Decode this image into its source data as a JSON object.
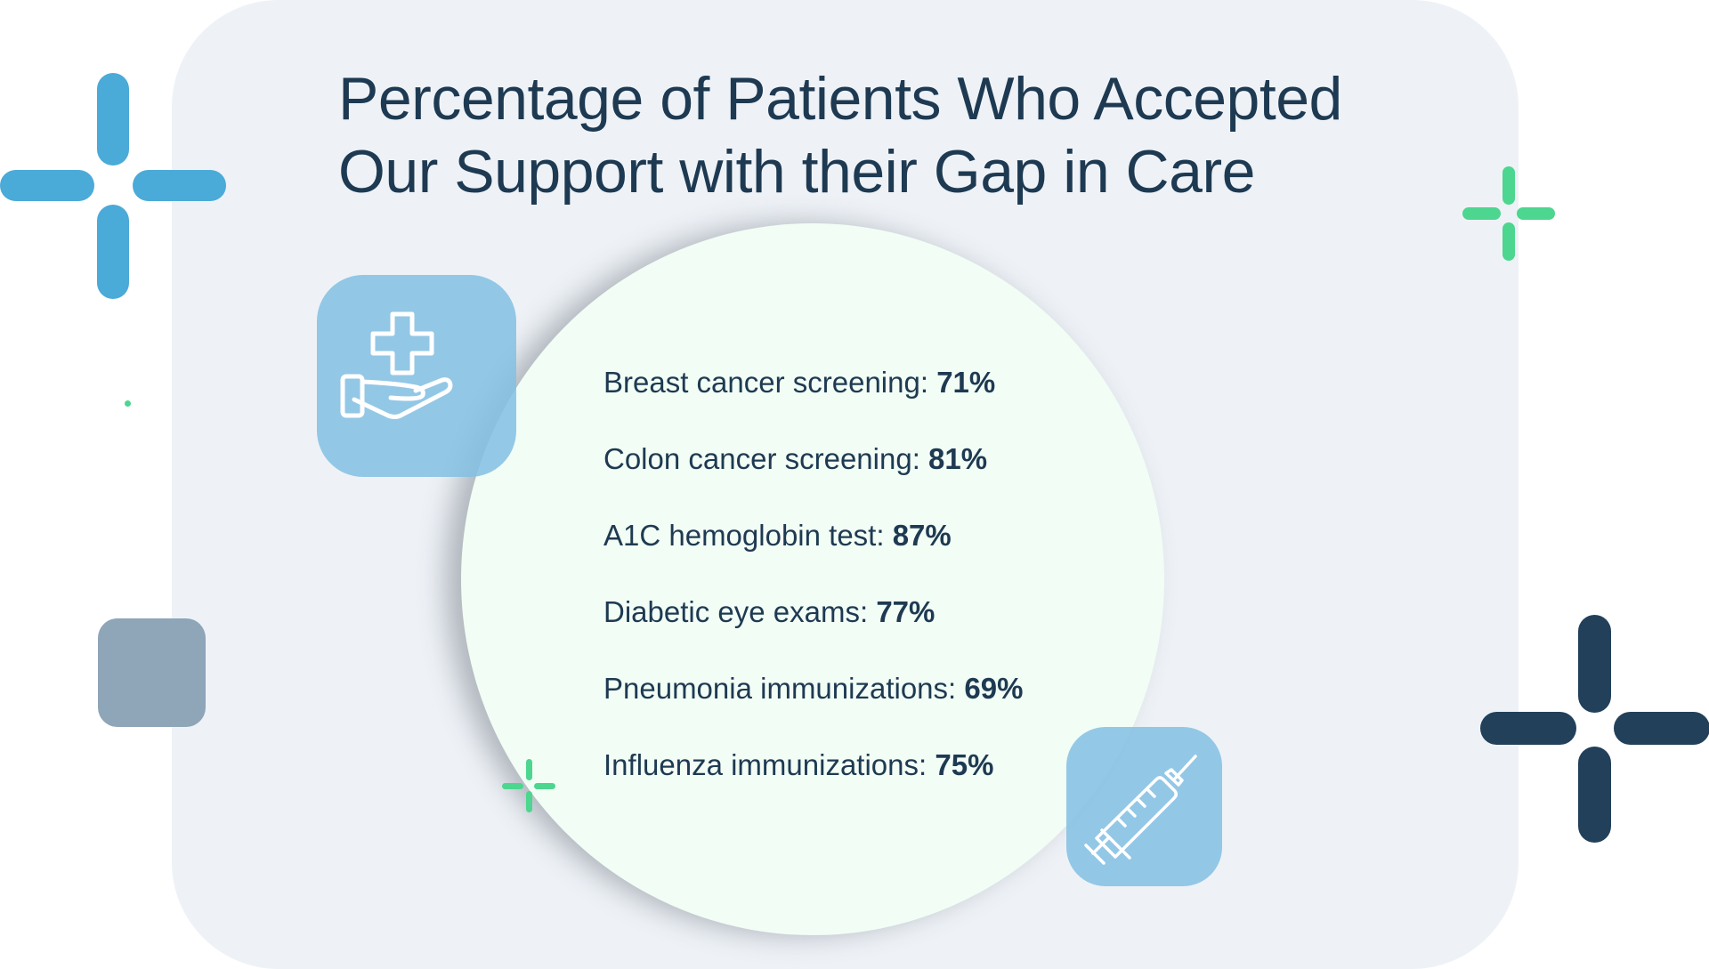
{
  "title": {
    "line1": "Percentage of Patients Who Accepted",
    "line2": "Our Support with their Gap in Care"
  },
  "stats": [
    {
      "label": "Breast cancer screening: ",
      "value": "71%"
    },
    {
      "label": "Colon cancer screening: ",
      "value": "81%"
    },
    {
      "label": "A1C hemoglobin test: ",
      "value": "87%"
    },
    {
      "label": "Diabetic eye exams: ",
      "value": "77%"
    },
    {
      "label": "Pneumonia immunizations: ",
      "value": "69%"
    },
    {
      "label": "Influenza immunizations: ",
      "value": "75%"
    }
  ],
  "icons": [
    "hand-with-medical-cross-icon",
    "syringe-icon"
  ],
  "colors": {
    "text": "#1e3a52",
    "panel": "#eef2f7",
    "circle": "#f2fdf5",
    "icon_box": "#82c0e3",
    "blue_cross": "#4aaad8",
    "green_cross": "#4cd68f",
    "dark_cross": "#22405a",
    "gray_square": "#8fa5b8"
  }
}
